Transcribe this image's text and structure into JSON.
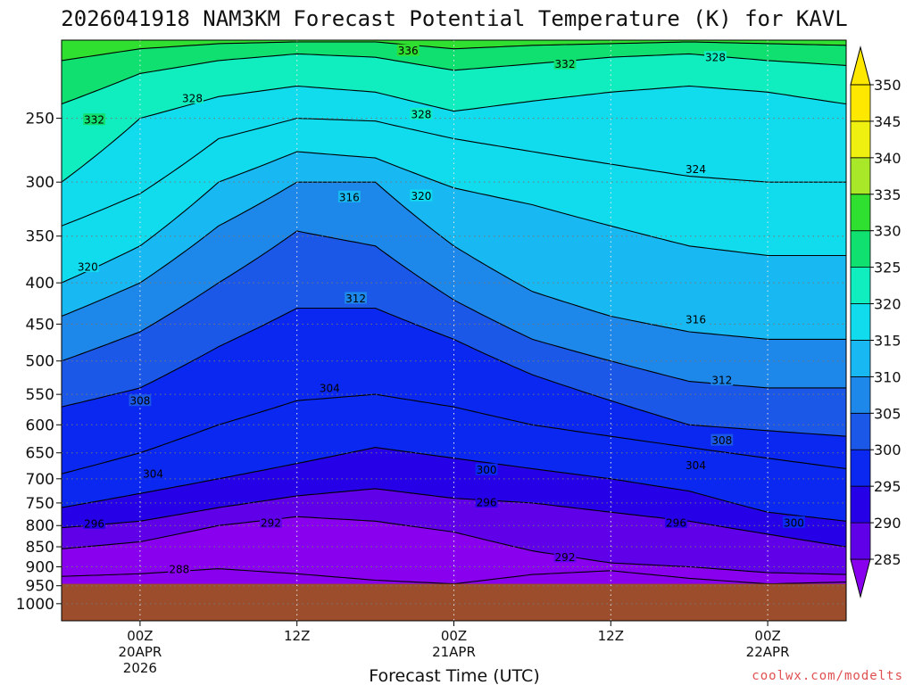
{
  "chart_data": {
    "type": "heatmap",
    "title": "2026041918 NAM3KM Forecast Potential Temperature (K) for KAVL",
    "xlabel": "Forecast Time (UTC)",
    "ylabel": "",
    "credit": "coolwx.com/modelts",
    "units": "K",
    "x_range_hours": [
      -6,
      54
    ],
    "x_ticks": [
      {
        "hour": 0,
        "lines": [
          "00Z",
          "20APR",
          "2026"
        ]
      },
      {
        "hour": 12,
        "lines": [
          "12Z"
        ]
      },
      {
        "hour": 24,
        "lines": [
          "00Z",
          "21APR"
        ]
      },
      {
        "hour": 36,
        "lines": [
          "12Z"
        ]
      },
      {
        "hour": 48,
        "lines": [
          "00Z",
          "22APR"
        ]
      }
    ],
    "y_scale": "log-pressure",
    "y_range_hpa": [
      200,
      1050
    ],
    "y_ticks": [
      250,
      300,
      350,
      400,
      450,
      500,
      550,
      600,
      650,
      700,
      750,
      800,
      850,
      900,
      950,
      1000
    ],
    "surface_pressure_hpa": 945,
    "colorbar": {
      "levels": [
        285,
        290,
        295,
        300,
        305,
        310,
        315,
        320,
        325,
        330,
        335,
        340,
        345,
        350
      ],
      "colors": [
        "#8800ee",
        "#6000e8",
        "#2600e6",
        "#0a28f0",
        "#1c58e8",
        "#1d88ea",
        "#18b8f2",
        "#10dcee",
        "#10eec0",
        "#10e070",
        "#30e030",
        "#a8e828",
        "#f0f010",
        "#ffe800"
      ]
    },
    "colors": {
      "ground": "#9c4e2c",
      "grid": "#777777",
      "contour": "#000000"
    },
    "isentropes": [
      {
        "theta": 288,
        "points": [
          [
            -6,
            925
          ],
          [
            0,
            918
          ],
          [
            6,
            905
          ],
          [
            12,
            918
          ],
          [
            18,
            935
          ],
          [
            24,
            945
          ],
          [
            30,
            920
          ],
          [
            36,
            910
          ],
          [
            42,
            930
          ],
          [
            48,
            945
          ],
          [
            54,
            940
          ]
        ]
      },
      {
        "theta": 292,
        "points": [
          [
            -6,
            855
          ],
          [
            0,
            838
          ],
          [
            6,
            800
          ],
          [
            12,
            780
          ],
          [
            18,
            790
          ],
          [
            24,
            815
          ],
          [
            30,
            860
          ],
          [
            36,
            890
          ],
          [
            42,
            900
          ],
          [
            48,
            915
          ],
          [
            54,
            920
          ]
        ]
      },
      {
        "theta": 296,
        "points": [
          [
            -6,
            805
          ],
          [
            0,
            790
          ],
          [
            6,
            760
          ],
          [
            12,
            735
          ],
          [
            18,
            720
          ],
          [
            24,
            740
          ],
          [
            30,
            750
          ],
          [
            36,
            770
          ],
          [
            42,
            790
          ],
          [
            48,
            820
          ],
          [
            54,
            850
          ]
        ]
      },
      {
        "theta": 300,
        "points": [
          [
            -6,
            760
          ],
          [
            0,
            730
          ],
          [
            6,
            700
          ],
          [
            12,
            670
          ],
          [
            18,
            640
          ],
          [
            24,
            660
          ],
          [
            30,
            680
          ],
          [
            36,
            700
          ],
          [
            42,
            725
          ],
          [
            48,
            770
          ],
          [
            54,
            790
          ]
        ]
      },
      {
        "theta": 304,
        "points": [
          [
            -6,
            690
          ],
          [
            0,
            650
          ],
          [
            6,
            600
          ],
          [
            12,
            560
          ],
          [
            18,
            550
          ],
          [
            24,
            570
          ],
          [
            30,
            600
          ],
          [
            36,
            620
          ],
          [
            42,
            640
          ],
          [
            48,
            660
          ],
          [
            54,
            680
          ]
        ]
      },
      {
        "theta": 308,
        "points": [
          [
            -6,
            570
          ],
          [
            0,
            540
          ],
          [
            6,
            480
          ],
          [
            12,
            430
          ],
          [
            18,
            430
          ],
          [
            24,
            470
          ],
          [
            30,
            520
          ],
          [
            36,
            560
          ],
          [
            42,
            600
          ],
          [
            48,
            610
          ],
          [
            54,
            620
          ]
        ]
      },
      {
        "theta": 312,
        "points": [
          [
            -6,
            500
          ],
          [
            0,
            460
          ],
          [
            6,
            400
          ],
          [
            12,
            345
          ],
          [
            18,
            360
          ],
          [
            24,
            420
          ],
          [
            30,
            470
          ],
          [
            36,
            500
          ],
          [
            42,
            530
          ],
          [
            48,
            540
          ],
          [
            54,
            540
          ]
        ]
      },
      {
        "theta": 316,
        "points": [
          [
            -6,
            440
          ],
          [
            0,
            400
          ],
          [
            6,
            340
          ],
          [
            12,
            300
          ],
          [
            18,
            300
          ],
          [
            24,
            360
          ],
          [
            30,
            410
          ],
          [
            36,
            440
          ],
          [
            42,
            460
          ],
          [
            48,
            470
          ],
          [
            54,
            470
          ]
        ]
      },
      {
        "theta": 320,
        "points": [
          [
            -6,
            400
          ],
          [
            0,
            360
          ],
          [
            6,
            300
          ],
          [
            12,
            275
          ],
          [
            18,
            280
          ],
          [
            24,
            305
          ],
          [
            30,
            320
          ],
          [
            36,
            340
          ],
          [
            42,
            360
          ],
          [
            48,
            370
          ],
          [
            54,
            370
          ]
        ]
      },
      {
        "theta": 324,
        "points": [
          [
            -6,
            340
          ],
          [
            0,
            310
          ],
          [
            6,
            265
          ],
          [
            12,
            250
          ],
          [
            18,
            252
          ],
          [
            24,
            265
          ],
          [
            30,
            275
          ],
          [
            36,
            285
          ],
          [
            42,
            295
          ],
          [
            48,
            300
          ],
          [
            54,
            300
          ]
        ]
      },
      {
        "theta": 328,
        "points": [
          [
            -6,
            300
          ],
          [
            0,
            250
          ],
          [
            6,
            235
          ],
          [
            12,
            228
          ],
          [
            18,
            232
          ],
          [
            24,
            245
          ],
          [
            30,
            238
          ],
          [
            36,
            232
          ],
          [
            42,
            228
          ],
          [
            48,
            232
          ],
          [
            54,
            240
          ]
        ]
      },
      {
        "theta": 332,
        "points": [
          [
            -6,
            240
          ],
          [
            0,
            220
          ],
          [
            6,
            212
          ],
          [
            12,
            208
          ],
          [
            18,
            210
          ],
          [
            24,
            218
          ],
          [
            30,
            214
          ],
          [
            36,
            210
          ],
          [
            42,
            208
          ],
          [
            48,
            212
          ],
          [
            54,
            215
          ]
        ]
      },
      {
        "theta": 336,
        "points": [
          [
            -6,
            212
          ],
          [
            0,
            205
          ],
          [
            6,
            202
          ],
          [
            12,
            201
          ],
          [
            18,
            201
          ],
          [
            24,
            205
          ],
          [
            30,
            203
          ],
          [
            36,
            202
          ],
          [
            42,
            201
          ],
          [
            48,
            202
          ],
          [
            54,
            203
          ]
        ]
      }
    ],
    "contour_labels": [
      {
        "text": "336",
        "hour": 20.5,
        "hpa": 206
      },
      {
        "text": "332",
        "hour": 32.5,
        "hpa": 214
      },
      {
        "text": "328",
        "hour": 44,
        "hpa": 210
      },
      {
        "text": "328",
        "hour": 4,
        "hpa": 236
      },
      {
        "text": "332",
        "hour": -3.5,
        "hpa": 251
      },
      {
        "text": "328",
        "hour": 21.5,
        "hpa": 247
      },
      {
        "text": "324",
        "hour": 42.5,
        "hpa": 289
      },
      {
        "text": "316",
        "hour": 16,
        "hpa": 313
      },
      {
        "text": "320",
        "hour": 21.5,
        "hpa": 312
      },
      {
        "text": "320",
        "hour": -4,
        "hpa": 382
      },
      {
        "text": "312",
        "hour": 16.5,
        "hpa": 418
      },
      {
        "text": "316",
        "hour": 42.5,
        "hpa": 444
      },
      {
        "text": "312",
        "hour": 44.5,
        "hpa": 528
      },
      {
        "text": "308",
        "hour": 0,
        "hpa": 560
      },
      {
        "text": "304",
        "hour": 14.5,
        "hpa": 540
      },
      {
        "text": "308",
        "hour": 44.5,
        "hpa": 627
      },
      {
        "text": "304",
        "hour": 42.5,
        "hpa": 673
      },
      {
        "text": "304",
        "hour": 1,
        "hpa": 690
      },
      {
        "text": "300",
        "hour": 26.5,
        "hpa": 682
      },
      {
        "text": "296",
        "hour": 26.5,
        "hpa": 748
      },
      {
        "text": "296",
        "hour": -3.5,
        "hpa": 795
      },
      {
        "text": "292",
        "hour": 10,
        "hpa": 793
      },
      {
        "text": "296",
        "hour": 41,
        "hpa": 793
      },
      {
        "text": "300",
        "hour": 50,
        "hpa": 793
      },
      {
        "text": "292",
        "hour": 32.5,
        "hpa": 875
      },
      {
        "text": "288",
        "hour": 3,
        "hpa": 906
      }
    ]
  }
}
